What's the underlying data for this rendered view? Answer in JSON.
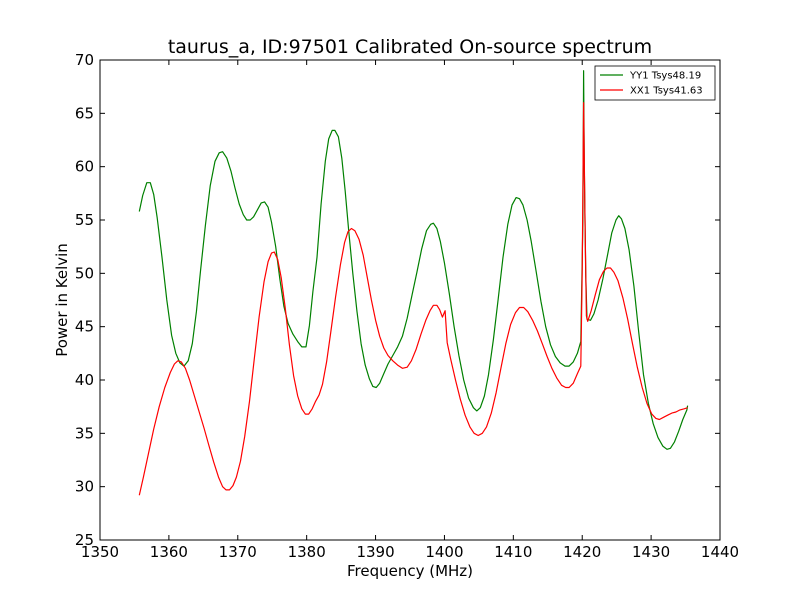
{
  "chart_data": {
    "type": "line",
    "title": "taurus_a, ID:97501 Calibrated On-source spectrum",
    "xlabel": "Frequency (MHz)",
    "ylabel": "Power in Kelvin",
    "xlim": [
      1350,
      1440
    ],
    "ylim": [
      25,
      70
    ],
    "xticks": [
      1350,
      1360,
      1370,
      1380,
      1390,
      1400,
      1410,
      1420,
      1430,
      1440
    ],
    "yticks": [
      25,
      30,
      35,
      40,
      45,
      50,
      55,
      60,
      65,
      70
    ],
    "grid": false,
    "legend_position": "top-right",
    "series": [
      {
        "name": "YY1 Tsys48.19",
        "color": "#008000",
        "points": [
          [
            1355.7,
            55.8
          ],
          [
            1356.2,
            57.3
          ],
          [
            1356.8,
            58.5
          ],
          [
            1357.3,
            58.5
          ],
          [
            1357.8,
            57.4
          ],
          [
            1358.3,
            55.2
          ],
          [
            1359.0,
            51.5
          ],
          [
            1359.7,
            47.5
          ],
          [
            1360.4,
            44.2
          ],
          [
            1361.0,
            42.5
          ],
          [
            1361.6,
            41.6
          ],
          [
            1362.2,
            41.3
          ],
          [
            1362.8,
            41.8
          ],
          [
            1363.4,
            43.4
          ],
          [
            1364.0,
            46.4
          ],
          [
            1364.6,
            50.3
          ],
          [
            1365.3,
            54.5
          ],
          [
            1366.0,
            58.2
          ],
          [
            1366.7,
            60.5
          ],
          [
            1367.3,
            61.3
          ],
          [
            1367.8,
            61.4
          ],
          [
            1368.4,
            60.8
          ],
          [
            1369.0,
            59.6
          ],
          [
            1369.6,
            58.0
          ],
          [
            1370.2,
            56.5
          ],
          [
            1370.8,
            55.5
          ],
          [
            1371.3,
            55.0
          ],
          [
            1371.8,
            55.0
          ],
          [
            1372.3,
            55.3
          ],
          [
            1372.8,
            55.9
          ],
          [
            1373.4,
            56.6
          ],
          [
            1373.9,
            56.7
          ],
          [
            1374.4,
            56.2
          ],
          [
            1374.9,
            54.8
          ],
          [
            1375.5,
            52.5
          ],
          [
            1376.1,
            49.5
          ],
          [
            1376.7,
            46.9
          ],
          [
            1377.3,
            45.3
          ],
          [
            1378.0,
            44.3
          ],
          [
            1378.7,
            43.6
          ],
          [
            1379.3,
            43.1
          ],
          [
            1379.9,
            43.1
          ],
          [
            1380.4,
            45.1
          ],
          [
            1380.9,
            48.3
          ],
          [
            1381.5,
            51.5
          ],
          [
            1382.1,
            56.5
          ],
          [
            1382.7,
            60.5
          ],
          [
            1383.2,
            62.6
          ],
          [
            1383.7,
            63.4
          ],
          [
            1384.1,
            63.4
          ],
          [
            1384.6,
            62.8
          ],
          [
            1385.1,
            60.8
          ],
          [
            1385.6,
            57.7
          ],
          [
            1386.1,
            54.0
          ],
          [
            1386.7,
            50.0
          ],
          [
            1387.3,
            46.4
          ],
          [
            1387.9,
            43.4
          ],
          [
            1388.5,
            41.4
          ],
          [
            1389.1,
            40.1
          ],
          [
            1389.6,
            39.4
          ],
          [
            1390.1,
            39.3
          ],
          [
            1390.6,
            39.7
          ],
          [
            1391.2,
            40.6
          ],
          [
            1391.8,
            41.5
          ],
          [
            1392.5,
            42.3
          ],
          [
            1393.2,
            43.1
          ],
          [
            1393.9,
            44.1
          ],
          [
            1394.6,
            45.8
          ],
          [
            1395.3,
            48.0
          ],
          [
            1396.0,
            50.1
          ],
          [
            1396.7,
            52.3
          ],
          [
            1397.4,
            54.0
          ],
          [
            1398.0,
            54.6
          ],
          [
            1398.4,
            54.7
          ],
          [
            1398.9,
            54.2
          ],
          [
            1399.4,
            53.0
          ],
          [
            1400.0,
            51.0
          ],
          [
            1400.7,
            48.1
          ],
          [
            1401.4,
            45.0
          ],
          [
            1402.1,
            42.3
          ],
          [
            1402.8,
            40.0
          ],
          [
            1403.5,
            38.3
          ],
          [
            1404.2,
            37.4
          ],
          [
            1404.7,
            37.1
          ],
          [
            1405.2,
            37.4
          ],
          [
            1405.8,
            38.5
          ],
          [
            1406.4,
            40.5
          ],
          [
            1407.1,
            43.8
          ],
          [
            1407.8,
            47.6
          ],
          [
            1408.5,
            51.5
          ],
          [
            1409.2,
            54.6
          ],
          [
            1409.8,
            56.4
          ],
          [
            1410.4,
            57.1
          ],
          [
            1410.9,
            57.0
          ],
          [
            1411.4,
            56.4
          ],
          [
            1412.0,
            55.0
          ],
          [
            1412.6,
            53.0
          ],
          [
            1413.3,
            50.2
          ],
          [
            1414.0,
            47.4
          ],
          [
            1414.7,
            45.0
          ],
          [
            1415.4,
            43.3
          ],
          [
            1416.1,
            42.2
          ],
          [
            1416.8,
            41.6
          ],
          [
            1417.5,
            41.3
          ],
          [
            1418.1,
            41.3
          ],
          [
            1418.7,
            41.7
          ],
          [
            1419.3,
            42.5
          ],
          [
            1419.8,
            43.6
          ],
          [
            1420.1,
            55.0
          ],
          [
            1420.2,
            69.0
          ],
          [
            1420.3,
            60.0
          ],
          [
            1420.5,
            50.0
          ],
          [
            1420.7,
            45.7
          ],
          [
            1421.2,
            45.6
          ],
          [
            1421.7,
            46.2
          ],
          [
            1422.3,
            47.5
          ],
          [
            1423.0,
            49.5
          ],
          [
            1423.7,
            51.8
          ],
          [
            1424.3,
            53.8
          ],
          [
            1424.9,
            55.0
          ],
          [
            1425.3,
            55.4
          ],
          [
            1425.7,
            55.1
          ],
          [
            1426.2,
            54.2
          ],
          [
            1426.8,
            52.2
          ],
          [
            1427.5,
            48.8
          ],
          [
            1428.2,
            44.5
          ],
          [
            1428.9,
            40.5
          ],
          [
            1429.6,
            37.8
          ],
          [
            1430.3,
            35.9
          ],
          [
            1431.0,
            34.6
          ],
          [
            1431.7,
            33.8
          ],
          [
            1432.3,
            33.5
          ],
          [
            1432.8,
            33.6
          ],
          [
            1433.4,
            34.2
          ],
          [
            1434.0,
            35.2
          ],
          [
            1434.6,
            36.3
          ],
          [
            1435.2,
            37.2
          ],
          [
            1435.3,
            37.6
          ]
        ]
      },
      {
        "name": "XX1 Tsys41.63",
        "color": "#ff0000",
        "points": [
          [
            1355.7,
            29.2
          ],
          [
            1356.3,
            30.9
          ],
          [
            1357.0,
            33.0
          ],
          [
            1357.8,
            35.4
          ],
          [
            1358.6,
            37.5
          ],
          [
            1359.4,
            39.3
          ],
          [
            1360.2,
            40.7
          ],
          [
            1360.8,
            41.5
          ],
          [
            1361.3,
            41.8
          ],
          [
            1361.8,
            41.7
          ],
          [
            1362.4,
            41.1
          ],
          [
            1363.0,
            40.0
          ],
          [
            1363.7,
            38.5
          ],
          [
            1364.4,
            37.0
          ],
          [
            1365.1,
            35.5
          ],
          [
            1365.8,
            33.9
          ],
          [
            1366.5,
            32.3
          ],
          [
            1367.2,
            30.9
          ],
          [
            1367.8,
            30.0
          ],
          [
            1368.3,
            29.7
          ],
          [
            1368.8,
            29.7
          ],
          [
            1369.3,
            30.1
          ],
          [
            1369.8,
            30.9
          ],
          [
            1370.4,
            32.4
          ],
          [
            1371.0,
            34.7
          ],
          [
            1371.7,
            38.0
          ],
          [
            1372.4,
            42.0
          ],
          [
            1373.1,
            45.9
          ],
          [
            1373.8,
            49.2
          ],
          [
            1374.4,
            51.1
          ],
          [
            1374.9,
            51.9
          ],
          [
            1375.3,
            52.0
          ],
          [
            1375.8,
            51.3
          ],
          [
            1376.3,
            49.6
          ],
          [
            1376.9,
            46.7
          ],
          [
            1377.5,
            43.3
          ],
          [
            1378.1,
            40.4
          ],
          [
            1378.7,
            38.5
          ],
          [
            1379.3,
            37.3
          ],
          [
            1379.8,
            36.8
          ],
          [
            1380.3,
            36.8
          ],
          [
            1380.8,
            37.3
          ],
          [
            1381.3,
            38.0
          ],
          [
            1381.8,
            38.6
          ],
          [
            1382.3,
            39.6
          ],
          [
            1382.9,
            41.7
          ],
          [
            1383.5,
            44.5
          ],
          [
            1384.2,
            47.8
          ],
          [
            1384.9,
            50.8
          ],
          [
            1385.5,
            52.9
          ],
          [
            1386.0,
            53.9
          ],
          [
            1386.5,
            54.2
          ],
          [
            1387.0,
            54.0
          ],
          [
            1387.6,
            53.2
          ],
          [
            1388.2,
            51.7
          ],
          [
            1388.8,
            49.6
          ],
          [
            1389.4,
            47.5
          ],
          [
            1390.0,
            45.6
          ],
          [
            1390.6,
            44.1
          ],
          [
            1391.2,
            43.0
          ],
          [
            1391.8,
            42.3
          ],
          [
            1392.5,
            41.8
          ],
          [
            1393.2,
            41.4
          ],
          [
            1393.9,
            41.1
          ],
          [
            1394.6,
            41.2
          ],
          [
            1395.2,
            41.8
          ],
          [
            1395.9,
            42.9
          ],
          [
            1396.6,
            44.3
          ],
          [
            1397.3,
            45.6
          ],
          [
            1397.9,
            46.5
          ],
          [
            1398.4,
            47.0
          ],
          [
            1398.9,
            47.0
          ],
          [
            1399.3,
            46.6
          ],
          [
            1399.7,
            45.9
          ],
          [
            1400.1,
            46.5
          ],
          [
            1400.4,
            43.5
          ],
          [
            1400.9,
            42.0
          ],
          [
            1401.6,
            40.0
          ],
          [
            1402.3,
            38.2
          ],
          [
            1403.0,
            36.7
          ],
          [
            1403.7,
            35.6
          ],
          [
            1404.3,
            35.0
          ],
          [
            1404.9,
            34.8
          ],
          [
            1405.5,
            35.0
          ],
          [
            1406.1,
            35.6
          ],
          [
            1406.8,
            36.9
          ],
          [
            1407.5,
            38.8
          ],
          [
            1408.2,
            41.1
          ],
          [
            1408.9,
            43.4
          ],
          [
            1409.6,
            45.2
          ],
          [
            1410.3,
            46.3
          ],
          [
            1410.9,
            46.8
          ],
          [
            1411.5,
            46.8
          ],
          [
            1412.1,
            46.4
          ],
          [
            1412.8,
            45.6
          ],
          [
            1413.5,
            44.6
          ],
          [
            1414.2,
            43.4
          ],
          [
            1414.9,
            42.2
          ],
          [
            1415.6,
            41.1
          ],
          [
            1416.3,
            40.2
          ],
          [
            1417.0,
            39.5
          ],
          [
            1417.6,
            39.3
          ],
          [
            1418.1,
            39.3
          ],
          [
            1418.7,
            39.7
          ],
          [
            1419.3,
            40.6
          ],
          [
            1419.8,
            41.3
          ],
          [
            1420.0,
            50.0
          ],
          [
            1420.2,
            66.0
          ],
          [
            1420.4,
            55.0
          ],
          [
            1420.6,
            46.0
          ],
          [
            1420.8,
            45.5
          ],
          [
            1421.3,
            46.5
          ],
          [
            1421.9,
            48.0
          ],
          [
            1422.5,
            49.4
          ],
          [
            1423.1,
            50.2
          ],
          [
            1423.6,
            50.5
          ],
          [
            1424.1,
            50.5
          ],
          [
            1424.6,
            50.1
          ],
          [
            1425.2,
            49.3
          ],
          [
            1425.9,
            47.7
          ],
          [
            1426.6,
            45.7
          ],
          [
            1427.3,
            43.4
          ],
          [
            1428.0,
            41.2
          ],
          [
            1428.7,
            39.3
          ],
          [
            1429.4,
            37.8
          ],
          [
            1430.1,
            36.8
          ],
          [
            1430.7,
            36.4
          ],
          [
            1431.2,
            36.3
          ],
          [
            1431.8,
            36.5
          ],
          [
            1432.4,
            36.7
          ],
          [
            1433.0,
            36.9
          ],
          [
            1433.6,
            37.0
          ],
          [
            1434.2,
            37.2
          ],
          [
            1434.8,
            37.3
          ],
          [
            1435.3,
            37.4
          ]
        ]
      }
    ]
  }
}
